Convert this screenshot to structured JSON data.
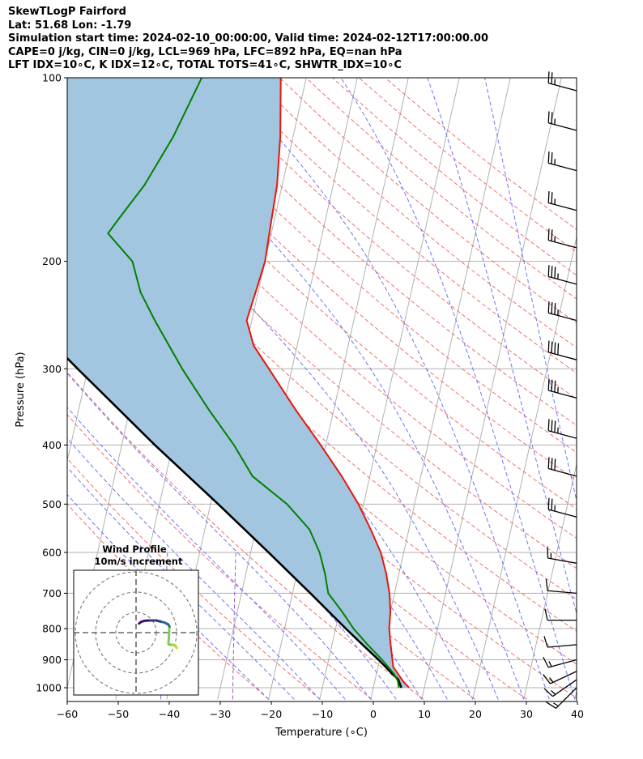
{
  "header": {
    "title": "SkewTLogP Fairford",
    "latlon": "Lat: 51.68   Lon: -1.79",
    "times": "Simulation start time: 2024-02-10_00:00:00, Valid time: 2024-02-12T17:00:00.00",
    "indices1": "CAPE=0 j/kg, CIN=0 j/kg, LCL=969 hPa, LFC=892 hPa, EQ=nan hPa",
    "indices2": "LFT IDX=10∘C, K IDX=12∘C, TOTAL TOTS=41∘C, SHWTR_IDX=10∘C"
  },
  "chart_data": {
    "type": "skewt-logp",
    "xlabel": "Temperature (∘C)",
    "ylabel": "Pressure (hPa)",
    "xlim": [
      -60,
      40
    ],
    "ylim": [
      1040,
      100
    ],
    "y_log": true,
    "grid": true,
    "x_ticks": [
      -60,
      -50,
      -40,
      -30,
      -20,
      -10,
      0,
      10,
      20,
      30,
      40
    ],
    "x_tick_labels": [
      "−60",
      "−50",
      "−40",
      "−30",
      "−20",
      "−10",
      "0",
      "10",
      "20",
      "30",
      "40"
    ],
    "y_ticks": [
      1000,
      900,
      800,
      700,
      600,
      500,
      400,
      300,
      200,
      100
    ],
    "y_tick_labels": [
      "1000",
      "900",
      "800",
      "700",
      "600",
      "500",
      "400",
      "300",
      "200",
      "100"
    ],
    "colors": {
      "temperature": "#e8160c",
      "dewpoint": "#008000",
      "parcel": "#000000",
      "cape_fill": "#a3c6e0",
      "dry_adiabat": "#f0706c",
      "moist_adiabat": "#6f74f7",
      "mixing_ratio": "#9c5bcc",
      "isotherm": "#a9a9a9",
      "hodograph_colors": [
        "#3b0f70",
        "#2c3e7a",
        "#31688e",
        "#7ad151",
        "#b5de2b"
      ]
    },
    "temperature_profile": [
      [
        1000,
        7.0
      ],
      [
        975,
        5.5
      ],
      [
        925,
        3.0
      ],
      [
        850,
        1.5
      ],
      [
        800,
        0.5
      ],
      [
        750,
        0.0
      ],
      [
        700,
        -1.0
      ],
      [
        650,
        -2.5
      ],
      [
        600,
        -4.5
      ],
      [
        550,
        -7.5
      ],
      [
        500,
        -11.0
      ],
      [
        450,
        -15.5
      ],
      [
        400,
        -21.0
      ],
      [
        350,
        -27.5
      ],
      [
        300,
        -34.5
      ],
      [
        275,
        -38.5
      ],
      [
        250,
        -41.0
      ],
      [
        225,
        -40.5
      ],
      [
        200,
        -40.0
      ],
      [
        175,
        -40.5
      ],
      [
        150,
        -41.0
      ],
      [
        125,
        -42.5
      ],
      [
        100,
        -45.0
      ]
    ],
    "dewpoint_profile": [
      [
        1000,
        5.0
      ],
      [
        975,
        4.5
      ],
      [
        950,
        3.5
      ],
      [
        900,
        0.5
      ],
      [
        850,
        -3.0
      ],
      [
        800,
        -6.5
      ],
      [
        750,
        -9.5
      ],
      [
        700,
        -13.0
      ],
      [
        650,
        -14.5
      ],
      [
        600,
        -16.5
      ],
      [
        550,
        -19.5
      ],
      [
        500,
        -25.0
      ],
      [
        450,
        -33.0
      ],
      [
        400,
        -38.0
      ],
      [
        350,
        -44.5
      ],
      [
        300,
        -51.5
      ],
      [
        250,
        -59.0
      ],
      [
        225,
        -63.0
      ],
      [
        200,
        -66.0
      ],
      [
        180,
        -72.0
      ],
      [
        170,
        -70.5
      ],
      [
        150,
        -67.0
      ],
      [
        125,
        -63.5
      ],
      [
        100,
        -60.5
      ]
    ],
    "parcel_profile": [
      [
        1000,
        5.5
      ],
      [
        969,
        4.5
      ],
      [
        950,
        3.2
      ],
      [
        900,
        -0.2
      ],
      [
        850,
        -4.0
      ],
      [
        800,
        -8.0
      ],
      [
        700,
        -16.5
      ],
      [
        600,
        -26.5
      ],
      [
        500,
        -38.5
      ],
      [
        400,
        -53.5
      ],
      [
        300,
        -72.0
      ],
      [
        250,
        -83.5
      ],
      [
        200,
        -97.5
      ],
      [
        150,
        -116.0
      ],
      [
        100,
        -142.0
      ]
    ],
    "wind_barbs": [
      {
        "p": 1000,
        "speed_kt": 15,
        "dir_deg": 225
      },
      {
        "p": 970,
        "speed_kt": 15,
        "dir_deg": 235
      },
      {
        "p": 940,
        "speed_kt": 15,
        "dir_deg": 245
      },
      {
        "p": 900,
        "speed_kt": 15,
        "dir_deg": 255
      },
      {
        "p": 850,
        "speed_kt": 10,
        "dir_deg": 265
      },
      {
        "p": 775,
        "speed_kt": 10,
        "dir_deg": 270
      },
      {
        "p": 700,
        "speed_kt": 10,
        "dir_deg": 275
      },
      {
        "p": 625,
        "speed_kt": 15,
        "dir_deg": 280
      },
      {
        "p": 525,
        "speed_kt": 25,
        "dir_deg": 285
      },
      {
        "p": 450,
        "speed_kt": 30,
        "dir_deg": 285
      },
      {
        "p": 390,
        "speed_kt": 35,
        "dir_deg": 285
      },
      {
        "p": 335,
        "speed_kt": 35,
        "dir_deg": 285
      },
      {
        "p": 290,
        "speed_kt": 40,
        "dir_deg": 285
      },
      {
        "p": 250,
        "speed_kt": 35,
        "dir_deg": 285
      },
      {
        "p": 218,
        "speed_kt": 35,
        "dir_deg": 285
      },
      {
        "p": 190,
        "speed_kt": 25,
        "dir_deg": 285
      },
      {
        "p": 165,
        "speed_kt": 25,
        "dir_deg": 285
      },
      {
        "p": 142,
        "speed_kt": 25,
        "dir_deg": 285
      },
      {
        "p": 122,
        "speed_kt": 25,
        "dir_deg": 285
      },
      {
        "p": 105,
        "speed_kt": 25,
        "dir_deg": 285
      }
    ],
    "hodograph": {
      "title": "Wind Profile",
      "subtitle": "10m/s increment",
      "ring_step_ms": 10,
      "rings": 3,
      "uv_ms": [
        [
          20,
          -7.5
        ],
        [
          19.5,
          -6.5
        ],
        [
          18.5,
          -6
        ],
        [
          17.5,
          -6
        ],
        [
          16.5,
          -6
        ],
        [
          16,
          -5.5
        ],
        [
          16.5,
          3
        ],
        [
          16,
          4
        ],
        [
          15,
          4.5
        ],
        [
          14,
          5
        ],
        [
          12,
          5.5
        ],
        [
          10,
          6
        ],
        [
          8,
          6
        ],
        [
          6,
          6
        ],
        [
          4,
          5.8
        ],
        [
          2.5,
          5.3
        ],
        [
          1.5,
          4.5
        ]
      ]
    }
  }
}
